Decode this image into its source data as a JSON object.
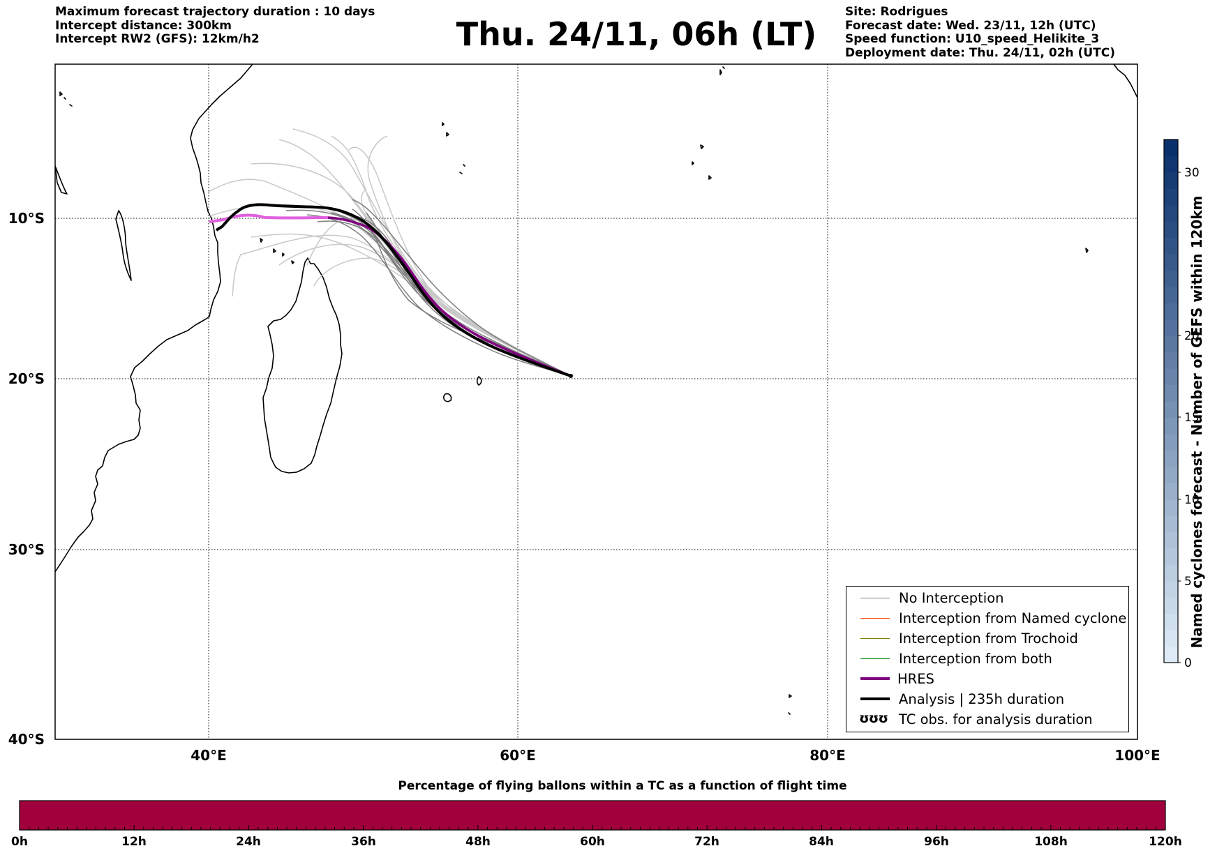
{
  "header_left": {
    "line1": "Maximum forecast trajectory duration : 10 days",
    "line2": "Intercept distance: 300km",
    "line3": "Intercept RW2 (GFS):  12km/h2"
  },
  "title": "Thu. 24/11, 06h (LT)",
  "header_right": {
    "line1": "Site: Rodrigues",
    "line2": "Forecast date: Wed. 23/11, 12h (UTC)",
    "line3": "Speed function: U10_speed_Helikite_3",
    "line4": "Deployment date: Thu. 24/11, 02h (UTC)"
  },
  "map": {
    "lon_range": [
      30,
      100
    ],
    "lat_range": [
      -40,
      -0.5
    ],
    "lon_ticks": [
      "40°E",
      "60°E",
      "80°E",
      "100°E"
    ],
    "lat_ticks": [
      "10°S",
      "20°S",
      "30°S",
      "40°S"
    ],
    "grid": "dotted"
  },
  "legend": {
    "no_interception": "No Interception",
    "named_cyclone": "Interception from Named cyclone",
    "trochoid": "Interception from Trochoid",
    "both": "Interception from both",
    "hres": "HRES",
    "analysis": "Analysis | 235h duration",
    "tc_obs": "TC obs. for analysis duration",
    "tc_glyph": "ʊʊʊ"
  },
  "colorbar": {
    "label": "Named cyclones forecast - Number of GEFS within 120km",
    "ticks": [
      "0",
      "5",
      "10",
      "15",
      "20",
      "30"
    ],
    "range": [
      0,
      32
    ]
  },
  "bottom_bar": {
    "title": "Percentage of flying ballons within a TC as a function of flight time",
    "ticks": [
      "0h",
      "12h",
      "24h",
      "36h",
      "48h",
      "60h",
      "72h",
      "84h",
      "96h",
      "108h",
      "120h"
    ],
    "value_color": "#a0003c"
  },
  "colors": {
    "no_interception": "#7f7f7f",
    "named_cyclone": "#ff4500",
    "trochoid": "#808000",
    "both": "#008000",
    "hres": "#800080",
    "analysis": "#000000"
  }
}
